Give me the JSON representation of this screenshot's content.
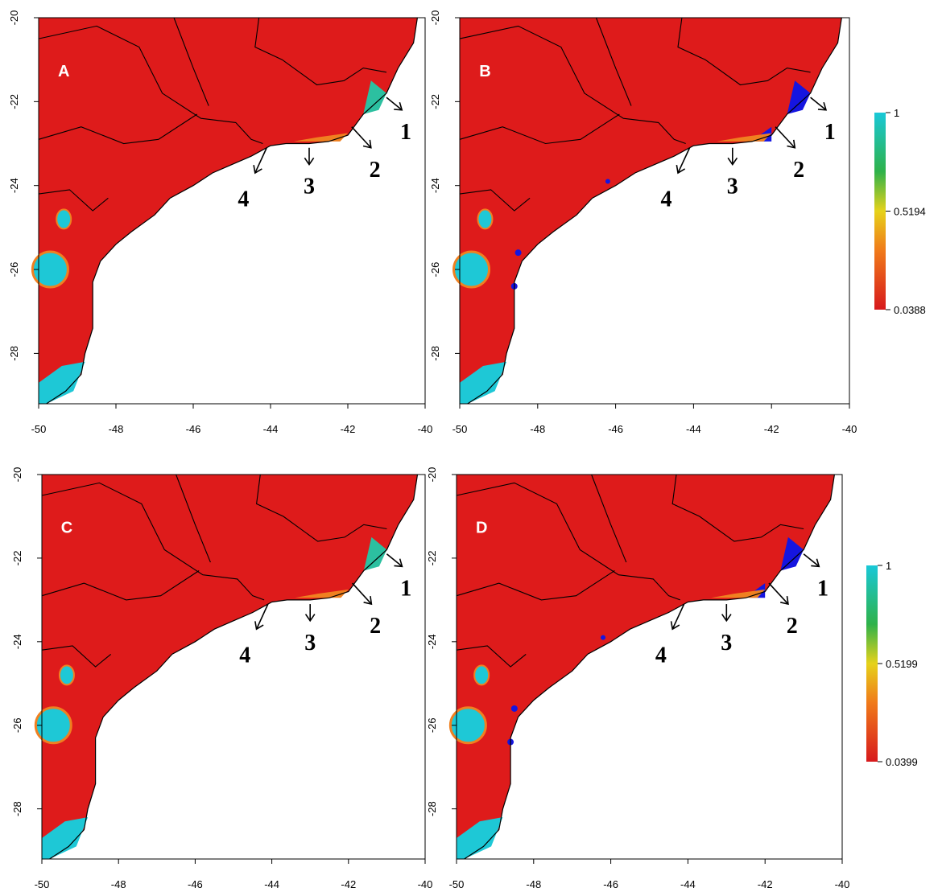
{
  "panels": [
    {
      "label": "A",
      "xlim": [
        -50,
        -40
      ],
      "ylim": [
        -29.2,
        -20
      ],
      "xticks": [
        -50,
        -48,
        -46,
        -44,
        -42,
        -40
      ],
      "yticks": [
        -20,
        -22,
        -24,
        -26,
        -28
      ],
      "annotations": [
        "1",
        "2",
        "3",
        "4"
      ]
    },
    {
      "label": "B",
      "xlim": [
        -50,
        -40
      ],
      "ylim": [
        -29.2,
        -20
      ],
      "xticks": [
        -50,
        -48,
        -46,
        -44,
        -42,
        -40
      ],
      "yticks": [
        -20,
        -22,
        -24,
        -26,
        -28
      ],
      "annotations": [
        "1",
        "2",
        "3",
        "4"
      ]
    },
    {
      "label": "C",
      "xlim": [
        -50,
        -40
      ],
      "ylim": [
        -29.2,
        -20
      ],
      "xticks": [
        -50,
        -48,
        -46,
        -44,
        -42,
        -40
      ],
      "yticks": [
        -20,
        -22,
        -24,
        -26,
        -28
      ],
      "annotations": [
        "1",
        "2",
        "3",
        "4"
      ]
    },
    {
      "label": "D",
      "xlim": [
        -50,
        -40
      ],
      "ylim": [
        -29.2,
        -20
      ],
      "xticks": [
        -50,
        -48,
        -46,
        -44,
        -42,
        -40
      ],
      "yticks": [
        -20,
        -22,
        -24,
        -26,
        -28
      ],
      "annotations": [
        "1",
        "2",
        "3",
        "4"
      ]
    }
  ],
  "colorbars": [
    {
      "lim": [
        0.0388,
        1
      ],
      "ticks": [
        1,
        0.5194,
        0.0388
      ]
    },
    {
      "lim": [
        0.0399,
        1
      ],
      "ticks": [
        1,
        0.5199,
        0.0399
      ]
    }
  ]
}
